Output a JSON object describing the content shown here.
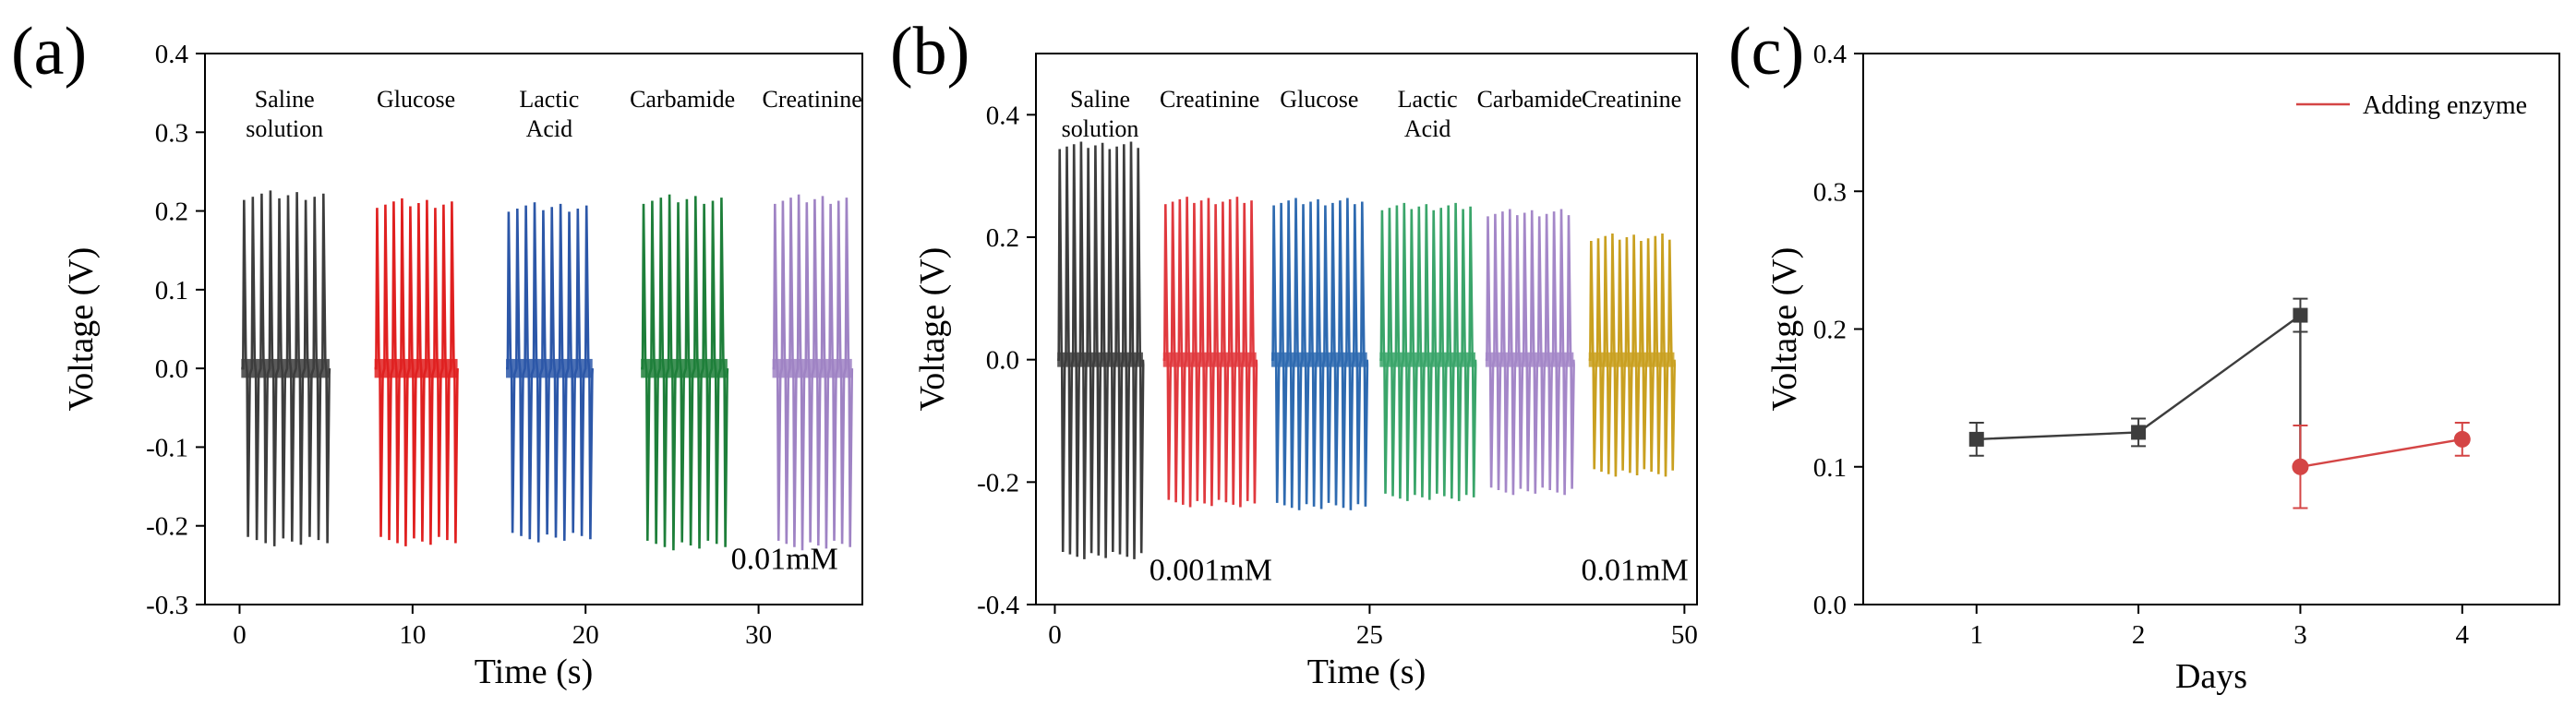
{
  "chart_data": [
    {
      "panel": "(a)",
      "type": "line",
      "xlabel": "Time (s)",
      "ylabel": "Voltage (V)",
      "xlim": [
        -2,
        36
      ],
      "ylim": [
        -0.3,
        0.4
      ],
      "xticks": [
        0,
        10,
        20,
        30
      ],
      "yticks": [
        -0.3,
        -0.2,
        -0.1,
        0.0,
        0.1,
        0.2,
        0.3,
        0.4
      ],
      "ytick_labels": [
        "-0.3",
        "-0.2",
        "-0.1",
        "0.0",
        "0.1",
        "0.2",
        "0.3",
        "0.4"
      ],
      "annotation": "0.01mM",
      "series": [
        {
          "name": "Saline solution",
          "label_lines": [
            "Saline",
            "solution"
          ],
          "color": "#3d3d3d",
          "x_start": 0.1,
          "x_end": 5.2,
          "pulses": 10,
          "peak": 0.22,
          "trough": -0.22,
          "label_x": 2.6
        },
        {
          "name": "Glucose",
          "label_lines": [
            "Glucose"
          ],
          "color": "#e02020",
          "x_start": 7.8,
          "x_end": 12.6,
          "pulses": 10,
          "peak": 0.21,
          "trough": -0.22,
          "label_x": 10.2
        },
        {
          "name": "Lactic Acid",
          "label_lines": [
            "Lactic",
            "Acid"
          ],
          "color": "#2c57a8",
          "x_start": 15.4,
          "x_end": 20.4,
          "pulses": 10,
          "peak": 0.205,
          "trough": -0.215,
          "label_x": 17.9
        },
        {
          "name": "Carbamide",
          "label_lines": [
            "Carbamide"
          ],
          "color": "#1e7f3a",
          "x_start": 23.2,
          "x_end": 28.2,
          "pulses": 10,
          "peak": 0.215,
          "trough": -0.225,
          "label_x": 25.6
        },
        {
          "name": "Creatinine",
          "label_lines": [
            "Creatinine"
          ],
          "color": "#9f83c4",
          "x_start": 30.8,
          "x_end": 35.4,
          "pulses": 10,
          "peak": 0.215,
          "trough": -0.225,
          "label_x": 33.1
        }
      ]
    },
    {
      "panel": "(b)",
      "type": "line",
      "xlabel": "Time (s)",
      "ylabel": "Voltage (V)",
      "xlim": [
        -1.5,
        51
      ],
      "ylim": [
        -0.4,
        0.5
      ],
      "xticks": [
        0,
        25,
        50
      ],
      "yticks": [
        -0.4,
        -0.2,
        0.0,
        0.2,
        0.4
      ],
      "ytick_labels": [
        "-0.4",
        "-0.2",
        "0.0",
        "0.2",
        "0.4"
      ],
      "annotations": [
        {
          "text": "0.001mM",
          "x": 7.5,
          "y": -0.36
        },
        {
          "text": "0.01mM",
          "x": 41.8,
          "y": -0.36
        }
      ],
      "series": [
        {
          "name": "Saline solution",
          "label_lines": [
            "Saline",
            "solution"
          ],
          "color": "#3d3d3d",
          "x_start": 0.2,
          "x_end": 7.0,
          "pulses": 12,
          "peak": 0.35,
          "trough": -0.32,
          "label_x": 3.6
        },
        {
          "name": "Creatinine",
          "label_lines": [
            "Creatinine"
          ],
          "color": "#e0393e",
          "x_start": 8.6,
          "x_end": 16.0,
          "pulses": 13,
          "peak": 0.26,
          "trough": -0.235,
          "label_x": 12.3
        },
        {
          "name": "Glucose",
          "label_lines": [
            "Glucose"
          ],
          "color": "#2e6ab0",
          "x_start": 17.2,
          "x_end": 24.8,
          "pulses": 13,
          "peak": 0.258,
          "trough": -0.24,
          "label_x": 21.0
        },
        {
          "name": "Lactic Acid",
          "label_lines": [
            "Lactic",
            "Acid"
          ],
          "color": "#3aa56a",
          "x_start": 25.8,
          "x_end": 33.4,
          "pulses": 13,
          "peak": 0.25,
          "trough": -0.225,
          "label_x": 29.6
        },
        {
          "name": "Carbamide",
          "label_lines": [
            "Carbamide"
          ],
          "color": "#a487c8",
          "x_start": 34.2,
          "x_end": 41.2,
          "pulses": 12,
          "peak": 0.24,
          "trough": -0.215,
          "label_x": 37.7
        },
        {
          "name": "Creatinine",
          "label_lines": [
            "Creatinine"
          ],
          "color": "#c9a020",
          "x_start": 42.4,
          "x_end": 49.2,
          "pulses": 12,
          "peak": 0.2,
          "trough": -0.185,
          "label_x": 45.8
        }
      ]
    },
    {
      "panel": "(c)",
      "type": "line",
      "xlabel": "Days",
      "ylabel": "Voltage (V)",
      "xlim": [
        0.3,
        4.6
      ],
      "ylim": [
        0.0,
        0.4
      ],
      "xticks": [
        1,
        2,
        3,
        4
      ],
      "yticks": [
        0.0,
        0.1,
        0.2,
        0.3,
        0.4
      ],
      "ytick_labels": [
        "0.0",
        "0.1",
        "0.2",
        "0.3",
        "0.4"
      ],
      "legend": {
        "position": "top-right"
      },
      "series": [
        {
          "name": "",
          "color": "#3d3d3d",
          "marker": "square",
          "x": [
            1,
            2,
            3
          ],
          "y": [
            0.12,
            0.125,
            0.21
          ],
          "err": [
            0.012,
            0.01,
            0.012
          ],
          "drop_to": 0.1
        },
        {
          "name": "Adding enzyme",
          "color": "#d44545",
          "marker": "circle",
          "x": [
            3,
            4
          ],
          "y": [
            0.1,
            0.12
          ],
          "err": [
            0.03,
            0.012
          ]
        }
      ]
    }
  ]
}
